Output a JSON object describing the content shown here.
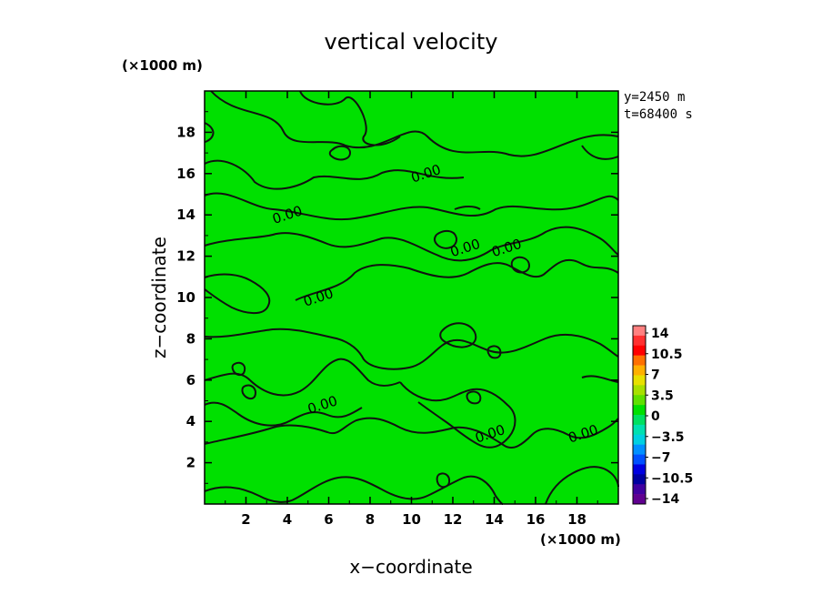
{
  "chart_data": {
    "type": "heatmap",
    "title": "vertical velocity",
    "xlabel": "x−coordinate",
    "ylabel": "z−coordinate",
    "x_unit": "(×1000 m)",
    "y_unit": "(×1000 m)",
    "xlim": [
      0,
      20
    ],
    "ylim": [
      0,
      20
    ],
    "x_ticks": [
      "2",
      "4",
      "6",
      "8",
      "10",
      "12",
      "14",
      "16",
      "18"
    ],
    "y_ticks": [
      "2",
      "4",
      "6",
      "8",
      "10",
      "12",
      "14",
      "16",
      "18"
    ],
    "info_lines": [
      "y=2450 m",
      "t=68400 s"
    ],
    "field_value": 0,
    "contour_level_label": "0.00",
    "contour_labels": [
      {
        "text": "0.00",
        "x": 10.7,
        "y": 16.0
      },
      {
        "text": "0.00",
        "x": 4.0,
        "y": 14.0
      },
      {
        "text": "0.00",
        "x": 12.6,
        "y": 12.4
      },
      {
        "text": "0.00",
        "x": 14.6,
        "y": 12.4
      },
      {
        "text": "0.00",
        "x": 5.5,
        "y": 10.0
      },
      {
        "text": "0.00",
        "x": 5.7,
        "y": 4.8
      },
      {
        "text": "0.00",
        "x": 13.8,
        "y": 3.4
      },
      {
        "text": "0.00",
        "x": 18.3,
        "y": 3.4
      }
    ],
    "colorbar": {
      "labels": [
        "14",
        "10.5",
        "7",
        "3.5",
        "0",
        "−3.5",
        "−7",
        "−10.5",
        "−14"
      ],
      "colors": [
        "#ff8080",
        "#ff3030",
        "#ff0000",
        "#ff7000",
        "#ffb000",
        "#e8e000",
        "#a8e000",
        "#60e000",
        "#00e000",
        "#00e060",
        "#00e0b0",
        "#00d0e0",
        "#0090ff",
        "#0050ff",
        "#0000e0",
        "#0000a0",
        "#4000a0",
        "#600090"
      ]
    }
  }
}
